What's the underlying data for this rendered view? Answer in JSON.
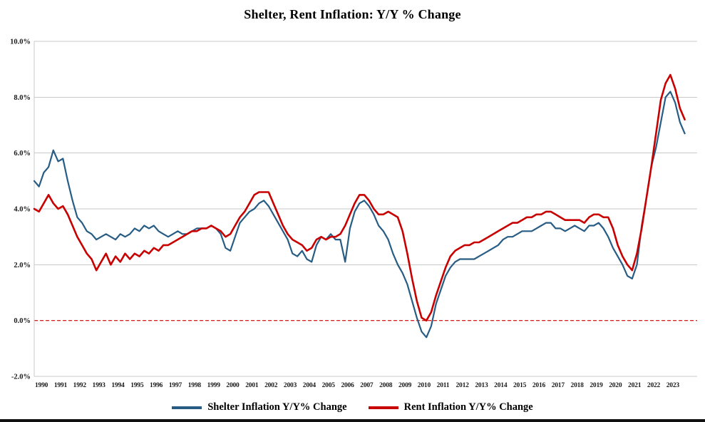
{
  "chart_data": {
    "type": "line",
    "title": "Shelter, Rent Inflation: Y/Y % Change",
    "xlabel": "",
    "ylabel": "",
    "ylim": [
      -2,
      10
    ],
    "xlim": [
      1990,
      2024.5
    ],
    "x_start": 1990,
    "x_step_years": 0.25,
    "grid": "horizontal",
    "gridline_color": "#c9c9c9",
    "zero_line": {
      "value": 0,
      "style": "dashed",
      "color": "#c80000"
    },
    "legend_position": "bottom",
    "y_ticks": [
      {
        "value": 10,
        "label": "10.0%"
      },
      {
        "value": 8,
        "label": "8.0%"
      },
      {
        "value": 6,
        "label": "6.0%"
      },
      {
        "value": 4,
        "label": "4.0%"
      },
      {
        "value": 2,
        "label": "2.0%"
      },
      {
        "value": 0,
        "label": "0.0%"
      },
      {
        "value": -2,
        "label": "-2.0%"
      }
    ],
    "x_ticks": [
      "1990",
      "1991",
      "1992",
      "1993",
      "1994",
      "1995",
      "1996",
      "1997",
      "1998",
      "1999",
      "2000",
      "2001",
      "2002",
      "2003",
      "2004",
      "2005",
      "2006",
      "2007",
      "2008",
      "2009",
      "2010",
      "2011",
      "2012",
      "2013",
      "2014",
      "2015",
      "2016",
      "2017",
      "2018",
      "2019",
      "2020",
      "2021",
      "2022",
      "2023"
    ],
    "series": [
      {
        "id": "shelter",
        "name": "Shelter Inflation Y/Y% Change",
        "color": "#275c84",
        "values": [
          5.0,
          4.8,
          5.3,
          5.5,
          6.1,
          5.7,
          5.8,
          5.0,
          4.3,
          3.7,
          3.5,
          3.2,
          3.1,
          2.9,
          3.0,
          3.1,
          3.0,
          2.9,
          3.1,
          3.0,
          3.1,
          3.3,
          3.2,
          3.4,
          3.3,
          3.4,
          3.2,
          3.1,
          3.0,
          3.1,
          3.2,
          3.1,
          3.1,
          3.2,
          3.3,
          3.3,
          3.3,
          3.4,
          3.3,
          3.1,
          2.6,
          2.5,
          3.0,
          3.5,
          3.7,
          3.9,
          4.0,
          4.2,
          4.3,
          4.1,
          3.8,
          3.5,
          3.2,
          2.9,
          2.4,
          2.3,
          2.5,
          2.2,
          2.1,
          2.7,
          3.0,
          2.9,
          3.1,
          2.9,
          2.9,
          2.1,
          3.3,
          3.9,
          4.2,
          4.3,
          4.1,
          3.8,
          3.4,
          3.2,
          2.9,
          2.4,
          2.0,
          1.7,
          1.3,
          0.7,
          0.1,
          -0.4,
          -0.6,
          -0.2,
          0.6,
          1.1,
          1.6,
          1.9,
          2.1,
          2.2,
          2.2,
          2.2,
          2.2,
          2.3,
          2.4,
          2.5,
          2.6,
          2.7,
          2.9,
          3.0,
          3.0,
          3.1,
          3.2,
          3.2,
          3.2,
          3.3,
          3.4,
          3.5,
          3.5,
          3.3,
          3.3,
          3.2,
          3.3,
          3.4,
          3.3,
          3.2,
          3.4,
          3.4,
          3.5,
          3.3,
          3.0,
          2.6,
          2.3,
          2.0,
          1.6,
          1.5,
          2.0,
          3.4,
          4.4,
          5.5,
          6.2,
          7.1,
          8.0,
          8.2,
          7.8,
          7.1,
          6.7
        ]
      },
      {
        "id": "rent",
        "name": "Rent Inflation Y/Y% Change",
        "color": "#c80000",
        "values": [
          4.0,
          3.9,
          4.2,
          4.5,
          4.2,
          4.0,
          4.1,
          3.8,
          3.4,
          3.0,
          2.7,
          2.4,
          2.2,
          1.8,
          2.1,
          2.4,
          2.0,
          2.3,
          2.1,
          2.4,
          2.2,
          2.4,
          2.3,
          2.5,
          2.4,
          2.6,
          2.5,
          2.7,
          2.7,
          2.8,
          2.9,
          3.0,
          3.1,
          3.2,
          3.2,
          3.3,
          3.3,
          3.4,
          3.3,
          3.2,
          3.0,
          3.1,
          3.4,
          3.7,
          3.9,
          4.2,
          4.5,
          4.6,
          4.6,
          4.6,
          4.2,
          3.8,
          3.4,
          3.1,
          2.9,
          2.8,
          2.7,
          2.5,
          2.6,
          2.9,
          3.0,
          2.9,
          3.0,
          3.0,
          3.1,
          3.4,
          3.8,
          4.2,
          4.5,
          4.5,
          4.3,
          4.0,
          3.8,
          3.8,
          3.9,
          3.8,
          3.7,
          3.2,
          2.4,
          1.5,
          0.7,
          0.1,
          0.0,
          0.3,
          0.9,
          1.4,
          1.9,
          2.3,
          2.5,
          2.6,
          2.7,
          2.7,
          2.8,
          2.8,
          2.9,
          3.0,
          3.1,
          3.2,
          3.3,
          3.4,
          3.5,
          3.5,
          3.6,
          3.7,
          3.7,
          3.8,
          3.8,
          3.9,
          3.9,
          3.8,
          3.7,
          3.6,
          3.6,
          3.6,
          3.6,
          3.5,
          3.7,
          3.8,
          3.8,
          3.7,
          3.7,
          3.3,
          2.7,
          2.3,
          2.0,
          1.8,
          2.4,
          3.3,
          4.4,
          5.5,
          6.7,
          7.9,
          8.5,
          8.8,
          8.3,
          7.6,
          7.2
        ]
      }
    ]
  }
}
